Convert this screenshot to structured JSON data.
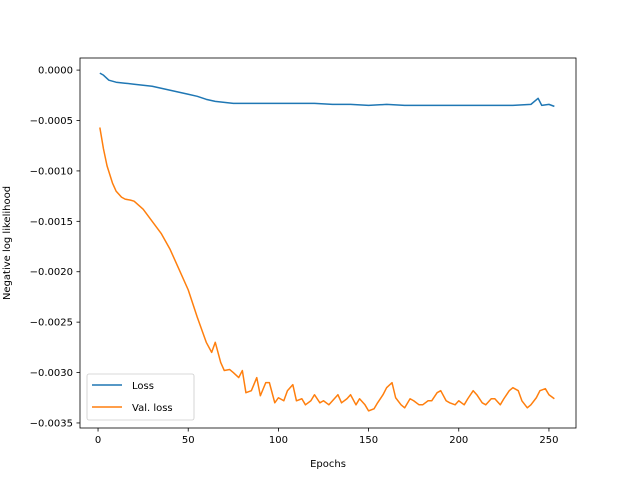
{
  "chart_data": {
    "type": "line",
    "title": "",
    "xlabel": "Epochs",
    "ylabel": "Negative log likelihood",
    "xlim": [
      -10,
      265
    ],
    "ylim": [
      -0.00355,
      0.00012
    ],
    "xticks": [
      0,
      50,
      100,
      150,
      200,
      250
    ],
    "yticks": [
      0.0,
      -0.0005,
      -0.001,
      -0.0015,
      -0.002,
      -0.0025,
      -0.003,
      -0.0035
    ],
    "ytick_labels": [
      "0.0000",
      "−0.0005",
      "−0.0010",
      "−0.0015",
      "−0.0020",
      "−0.0025",
      "−0.0030",
      "−0.0035"
    ],
    "grid": false,
    "legend_position": "lower-left",
    "series": [
      {
        "name": "Loss",
        "color": "#1f77b4",
        "x": [
          1,
          3,
          6,
          10,
          15,
          20,
          25,
          30,
          35,
          40,
          45,
          50,
          55,
          60,
          65,
          70,
          75,
          80,
          90,
          100,
          110,
          120,
          130,
          140,
          150,
          160,
          170,
          180,
          190,
          200,
          210,
          220,
          230,
          240,
          244,
          246,
          250,
          253
        ],
        "values": [
          -3e-05,
          -5e-05,
          -0.0001,
          -0.00012,
          -0.00013,
          -0.00014,
          -0.00015,
          -0.00016,
          -0.00018,
          -0.0002,
          -0.00022,
          -0.00024,
          -0.00026,
          -0.00029,
          -0.00031,
          -0.00032,
          -0.00033,
          -0.00033,
          -0.00033,
          -0.00033,
          -0.00033,
          -0.00033,
          -0.00034,
          -0.00034,
          -0.00035,
          -0.00034,
          -0.00035,
          -0.00035,
          -0.00035,
          -0.00035,
          -0.00035,
          -0.00035,
          -0.00035,
          -0.00034,
          -0.00028,
          -0.00035,
          -0.00034,
          -0.00036
        ]
      },
      {
        "name": "Val. loss",
        "color": "#ff7f0e",
        "x": [
          1,
          3,
          5,
          8,
          10,
          13,
          15,
          18,
          20,
          25,
          30,
          35,
          40,
          45,
          50,
          55,
          60,
          63,
          65,
          68,
          70,
          73,
          75,
          78,
          80,
          82,
          85,
          88,
          90,
          93,
          95,
          98,
          100,
          103,
          105,
          108,
          110,
          113,
          115,
          118,
          120,
          123,
          125,
          128,
          130,
          133,
          135,
          138,
          140,
          143,
          145,
          148,
          150,
          153,
          155,
          158,
          160,
          163,
          165,
          168,
          170,
          173,
          175,
          178,
          180,
          183,
          185,
          188,
          190,
          193,
          195,
          198,
          200,
          203,
          205,
          208,
          210,
          213,
          215,
          218,
          220,
          223,
          225,
          228,
          230,
          233,
          235,
          238,
          240,
          243,
          245,
          248,
          250,
          253
        ],
        "values": [
          -0.00057,
          -0.00078,
          -0.00095,
          -0.00112,
          -0.0012,
          -0.00126,
          -0.00128,
          -0.00129,
          -0.0013,
          -0.00138,
          -0.0015,
          -0.00162,
          -0.00178,
          -0.00198,
          -0.00218,
          -0.00245,
          -0.0027,
          -0.0028,
          -0.0027,
          -0.0029,
          -0.00298,
          -0.00297,
          -0.003,
          -0.00305,
          -0.00298,
          -0.0032,
          -0.00318,
          -0.00305,
          -0.00323,
          -0.0031,
          -0.0031,
          -0.0033,
          -0.00325,
          -0.00328,
          -0.00318,
          -0.00312,
          -0.00328,
          -0.00326,
          -0.00332,
          -0.00328,
          -0.00322,
          -0.0033,
          -0.00328,
          -0.00332,
          -0.00328,
          -0.00322,
          -0.0033,
          -0.00326,
          -0.00322,
          -0.00332,
          -0.00326,
          -0.00332,
          -0.00338,
          -0.00336,
          -0.0033,
          -0.00322,
          -0.00315,
          -0.0031,
          -0.00325,
          -0.00332,
          -0.00335,
          -0.00326,
          -0.00328,
          -0.00332,
          -0.00332,
          -0.00328,
          -0.00328,
          -0.0032,
          -0.00318,
          -0.00328,
          -0.0033,
          -0.00332,
          -0.00328,
          -0.00332,
          -0.00326,
          -0.00318,
          -0.00322,
          -0.0033,
          -0.00332,
          -0.00326,
          -0.00326,
          -0.00332,
          -0.00326,
          -0.00318,
          -0.00315,
          -0.00318,
          -0.00328,
          -0.00335,
          -0.00332,
          -0.00325,
          -0.00318,
          -0.00316,
          -0.00322,
          -0.00326
        ]
      }
    ]
  }
}
